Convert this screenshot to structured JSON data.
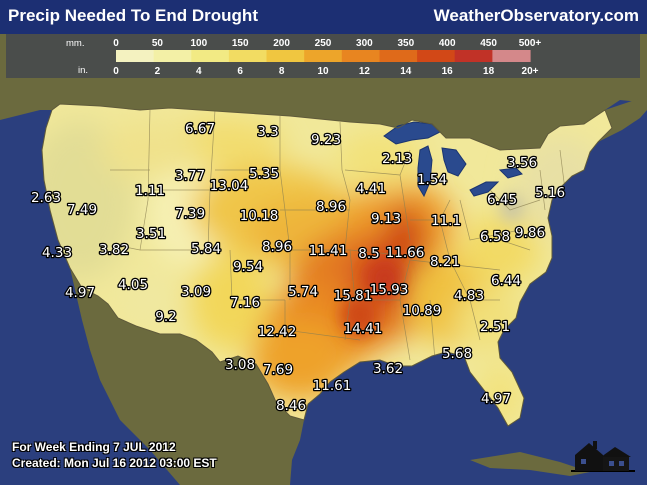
{
  "header": {
    "title": "Precip Needed To End Drought",
    "site": "WeatherObservatory.com"
  },
  "legend": {
    "mm_label": "mm.",
    "in_label": "in.",
    "mm_ticks": [
      "0",
      "50",
      "100",
      "150",
      "200",
      "250",
      "300",
      "350",
      "400",
      "450",
      "500+"
    ],
    "in_ticks": [
      "0",
      "2",
      "4",
      "6",
      "8",
      "10",
      "12",
      "14",
      "16",
      "18",
      "20+"
    ],
    "colors": [
      "#f4f2c0",
      "#f3f0a6",
      "#f2ea84",
      "#f2dc62",
      "#f0c640",
      "#eda52a",
      "#e88520",
      "#df6a1a",
      "#d24817",
      "#c13227",
      "#d4888a"
    ]
  },
  "colors": {
    "ocean": "#2b3f7e",
    "land_outside": "#6b6a3e",
    "lakes": "#2a4a8e",
    "title_bar": "#1c2f73"
  },
  "map_labels": [
    {
      "name": "6.67",
      "value": "6.67"
    },
    {
      "name": "3.3",
      "value": "3.3"
    },
    {
      "name": "9.23",
      "value": "9.23"
    },
    {
      "name": "2.13",
      "value": "2.13"
    },
    {
      "name": "3.56",
      "value": "3.56"
    },
    {
      "name": "3.77",
      "value": "3.77"
    },
    {
      "name": "13.04",
      "value": "13.04"
    },
    {
      "name": "5.35",
      "value": "5.35"
    },
    {
      "name": "1.54",
      "value": "1.54"
    },
    {
      "name": "4.41",
      "value": "4.41"
    },
    {
      "name": "2.63",
      "value": "2.63"
    },
    {
      "name": "1.11",
      "value": "1.11"
    },
    {
      "name": "7.49",
      "value": "7.49"
    },
    {
      "name": "7.39",
      "value": "7.39"
    },
    {
      "name": "10.18",
      "value": "10.18"
    },
    {
      "name": "8.96a",
      "value": "8.96"
    },
    {
      "name": "9.13",
      "value": "9.13"
    },
    {
      "name": "11.1",
      "value": "11.1"
    },
    {
      "name": "6.45",
      "value": "6.45"
    },
    {
      "name": "5.16",
      "value": "5.16"
    },
    {
      "name": "3.51",
      "value": "3.51"
    },
    {
      "name": "9.86",
      "value": "9.86"
    },
    {
      "name": "6.58",
      "value": "6.58"
    },
    {
      "name": "4.33",
      "value": "4.33"
    },
    {
      "name": "3.82",
      "value": "3.82"
    },
    {
      "name": "5.84",
      "value": "5.84"
    },
    {
      "name": "8.96b",
      "value": "8.96"
    },
    {
      "name": "11.41",
      "value": "11.41"
    },
    {
      "name": "8.5",
      "value": "8.5"
    },
    {
      "name": "11.66",
      "value": "11.66"
    },
    {
      "name": "8.21",
      "value": "8.21"
    },
    {
      "name": "9.54",
      "value": "9.54"
    },
    {
      "name": "6.44",
      "value": "6.44"
    },
    {
      "name": "4.05",
      "value": "4.05"
    },
    {
      "name": "15.93",
      "value": "15.93"
    },
    {
      "name": "4.97a",
      "value": "4.97"
    },
    {
      "name": "3.09",
      "value": "3.09"
    },
    {
      "name": "5.74",
      "value": "5.74"
    },
    {
      "name": "15.81",
      "value": "15.81"
    },
    {
      "name": "4.83",
      "value": "4.83"
    },
    {
      "name": "7.16",
      "value": "7.16"
    },
    {
      "name": "10.89",
      "value": "10.89"
    },
    {
      "name": "9.2",
      "value": "9.2"
    },
    {
      "name": "2.51",
      "value": "2.51"
    },
    {
      "name": "14.41",
      "value": "14.41"
    },
    {
      "name": "12.42",
      "value": "12.42"
    },
    {
      "name": "5.68",
      "value": "5.68"
    },
    {
      "name": "3.08",
      "value": "3.08"
    },
    {
      "name": "7.69",
      "value": "7.69"
    },
    {
      "name": "3.62",
      "value": "3.62"
    },
    {
      "name": "11.61",
      "value": "11.61"
    },
    {
      "name": "4.97b",
      "value": "4.97"
    },
    {
      "name": "8.46",
      "value": "8.46"
    }
  ],
  "footer": {
    "line1": "For Week Ending 7 JUL 2012",
    "line2": "Created: Mon Jul 16 2012 03:00 EST"
  }
}
